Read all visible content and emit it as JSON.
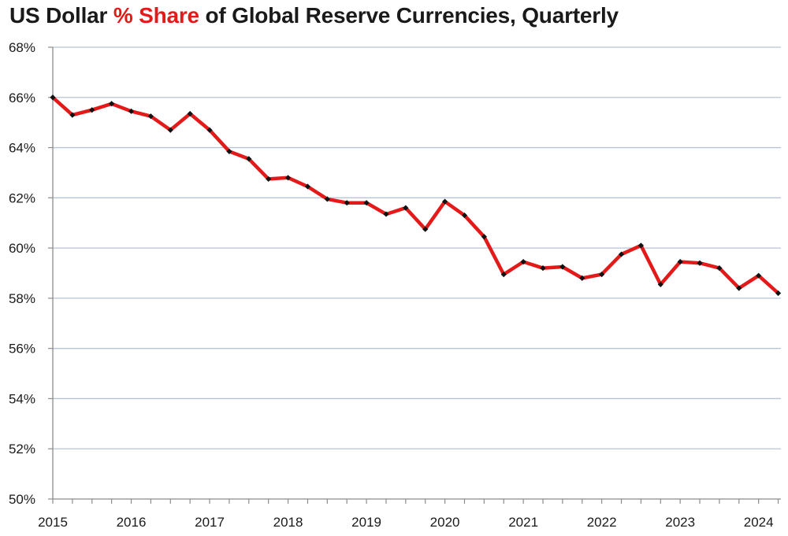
{
  "chart_data": {
    "type": "line",
    "title": {
      "part1": "US Dollar ",
      "part2": "% Share",
      "part3": " of Global Reserve Currencies, Quarterly"
    },
    "xlabel": "",
    "ylabel": "",
    "ylim": [
      50,
      68
    ],
    "y_ticks": [
      50,
      52,
      54,
      56,
      58,
      60,
      62,
      64,
      66,
      68
    ],
    "y_tick_labels": [
      "50%",
      "52%",
      "54%",
      "56%",
      "58%",
      "60%",
      "62%",
      "64%",
      "66%",
      "68%"
    ],
    "x_tick_labels": [
      "2015",
      "2016",
      "2017",
      "2018",
      "2019",
      "2020",
      "2021",
      "2022",
      "2023",
      "2024"
    ],
    "grid": true,
    "series": [
      {
        "values": [
          66.0,
          65.3,
          65.5,
          65.75,
          65.45,
          65.25,
          64.7,
          65.35,
          64.7,
          63.85,
          63.55,
          62.75,
          62.8,
          62.45,
          61.95,
          61.8,
          61.8,
          61.35,
          61.6,
          60.75,
          61.85,
          61.3,
          60.45,
          58.95,
          59.45,
          59.2,
          59.25,
          58.8,
          58.95,
          59.75,
          60.1,
          58.55,
          59.45,
          59.4,
          59.2,
          58.4,
          58.9,
          58.2
        ]
      }
    ],
    "colors": {
      "line": "#e41a1a",
      "marker": "#111111",
      "grid": "#b7c4d8",
      "axis": "#8c8c8c",
      "title_accent": "#e41a1a"
    }
  }
}
